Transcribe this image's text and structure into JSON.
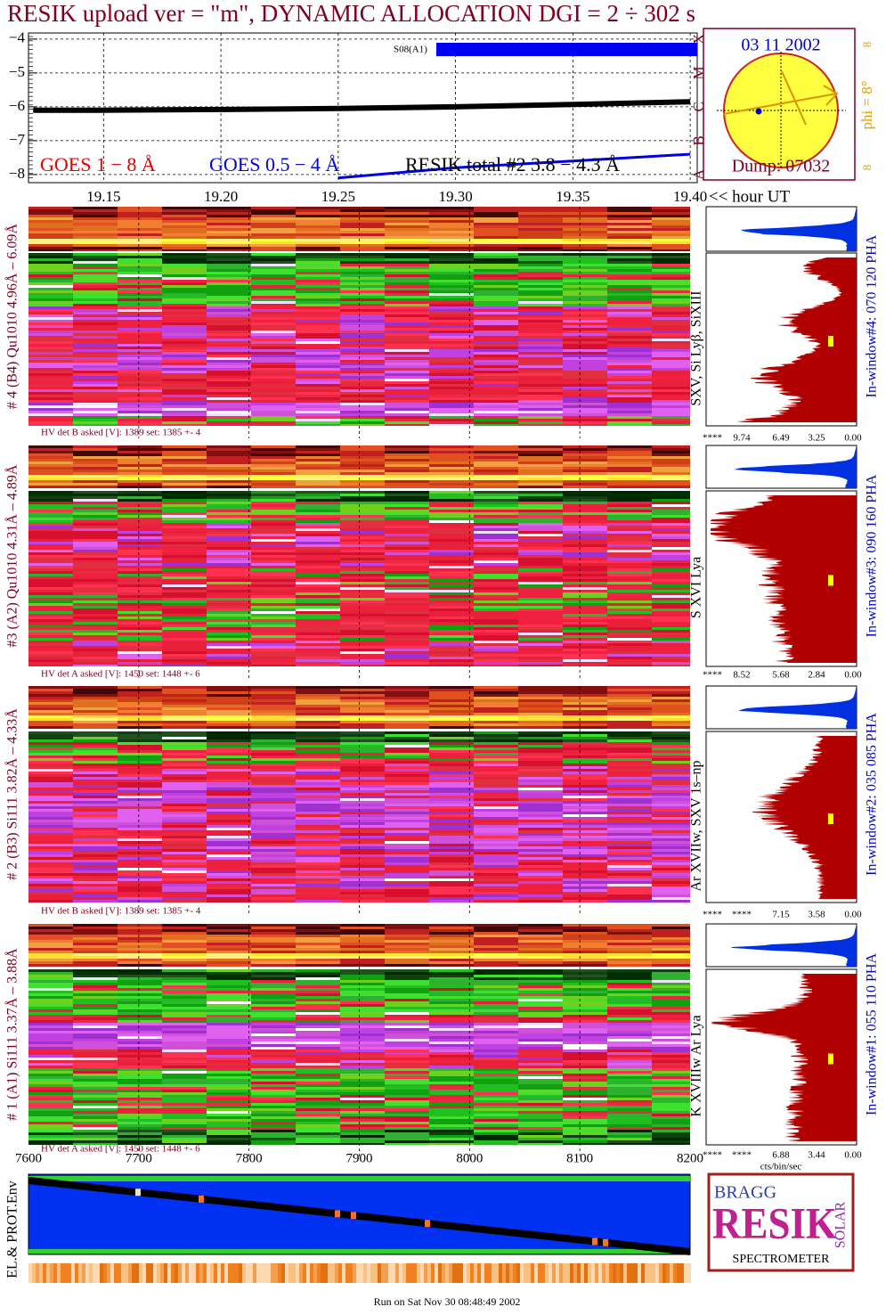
{
  "title": "RESIK upload ver = \"m\", DYNAMIC ALLOCATION  DGI =   2 ÷ 302 s",
  "chart_data": {
    "type": "line",
    "x": [
      19.12,
      19.15,
      19.2,
      19.25,
      19.3,
      19.35,
      19.4
    ],
    "series": [
      {
        "name": "GOES 1 − 8 Å",
        "color": "#e00000",
        "values": [
          -6.08,
          -6.07,
          -6.05,
          -6.02,
          -5.97,
          -5.9,
          -5.82
        ]
      },
      {
        "name": "GOES 0.5 − 4 Å",
        "color": "#0000e0",
        "values": [
          null,
          null,
          null,
          -8.1,
          -7.8,
          -7.6,
          -7.4
        ]
      },
      {
        "name": "RESIK total #2  3.8 − 4.3 Å",
        "color": "#000000",
        "values": [
          -6.1,
          -6.1,
          -6.08,
          -6.05,
          -6.0,
          -5.93,
          -5.85
        ]
      }
    ],
    "xlim": [
      19.118,
      19.403
    ],
    "xticks": [
      19.15,
      {
        "value": 19.2,
        "label": "19.20"
      },
      19.25,
      {
        "value": 19.3,
        "label": "19.30"
      },
      19.35,
      {
        "value": 19.4,
        "label": "19.40"
      }
    ],
    "x_axis_label": "<< hour UT",
    "ylim": [
      -8.24,
      -3.82
    ],
    "yticks": [
      {
        "value": -4,
        "label": "−4"
      },
      {
        "value": -5,
        "label": "−5"
      },
      {
        "value": -6,
        "label": "−6"
      },
      {
        "value": -7,
        "label": "−7"
      },
      {
        "value": -8,
        "label": "−8"
      }
    ],
    "flare_classes": [
      "A",
      "B",
      "C",
      "M",
      "X"
    ],
    "annotation": "S08(A1)"
  },
  "sun_panel": {
    "date": "03 11 2002",
    "dump": "Dump: 07032",
    "phi": "phi =  8°",
    "marks": [
      "8",
      "8"
    ]
  },
  "panels": [
    {
      "label": "# 4 (B4) Qu1010 4.96Å – 6.09Å",
      "lines": "SXV, Si Lyβ, SiXIII",
      "hv": "HV det B asked [V]:  1389 set:  1385 +-   4",
      "hist_ticks": [
        "****",
        "9.74",
        "6.49",
        "3.25",
        "0.00"
      ],
      "window": "In-window#4:  070 120 PHA"
    },
    {
      "label": "#3 (A2) Qu1010  4.31Å – 4.89Å",
      "lines": "S XVI Lya",
      "hv": "HV det A asked [V]:  1450 set:  1448 +-   6",
      "hist_ticks": [
        "****",
        "8.52",
        "5.68",
        "2.84",
        "0.00"
      ],
      "window": "In-window#3:  090 160 PHA"
    },
    {
      "label": "# 2 (B3) Si111  3.82Å – 4.33Å",
      "lines": "Ar XVIIw,  SXV 1s–np",
      "hv": "HV det B asked [V]:  1389 set:  1385 +-   4",
      "hist_ticks": [
        "****",
        "****",
        "7.15",
        "3.58",
        "0.00"
      ],
      "window": "In-window#2:  035 085 PHA"
    },
    {
      "label": "# 1 (A1) Si111  3.37Å – 3.88Å",
      "lines": "K XVIIIw  Ar Lya",
      "hv": "HV det A asked [V]:  1450 set:  1448 +-   6",
      "hist_ticks": [
        "****",
        "****",
        "6.88",
        "3.44",
        "0.00"
      ],
      "window": "In-window#1:  055 110 PHA"
    }
  ],
  "hist_unit": "cts/bin/sec",
  "bottom_plot": {
    "xlim": [
      7600,
      8200
    ],
    "xticks": [
      7600,
      7700,
      7800,
      7900,
      8000,
      8100,
      8200
    ],
    "label": "EL.& PROT.Env"
  },
  "logo": {
    "top_left": "BRAGG",
    "main": "RESIK",
    "top_right": "SOLAR",
    "bottom": "SPECTROMETER"
  },
  "footer": "Run on Sat Nov 30 08:48:49 2002"
}
